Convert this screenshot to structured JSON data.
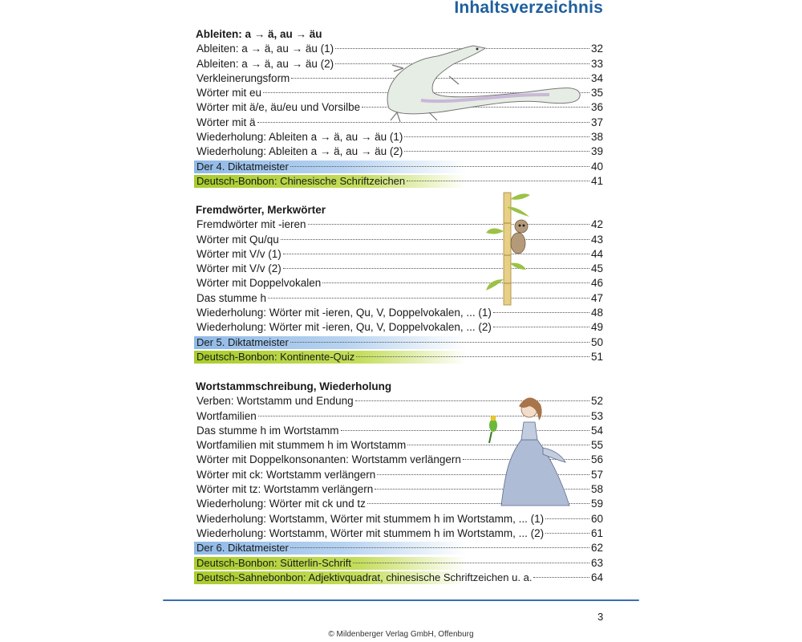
{
  "title": "Inhaltsverzeichnis",
  "sections": [
    {
      "heading": "Ableiten: a → ä, au → äu",
      "entries": [
        {
          "label": "Ableiten: a → ä, au → äu (1)",
          "page": "32",
          "style": "plain"
        },
        {
          "label": "Ableiten: a → ä, au → äu (2)",
          "page": "33",
          "style": "plain"
        },
        {
          "label": "Verkleinerungsform",
          "page": "34",
          "style": "plain"
        },
        {
          "label": "Wörter mit eu",
          "page": "35",
          "style": "plain"
        },
        {
          "label": "Wörter mit ä/e, äu/eu und Vorsilbe",
          "page": "36",
          "style": "plain"
        },
        {
          "label": "Wörter mit ä",
          "page": "37",
          "style": "plain"
        },
        {
          "label": "Wiederholung: Ableiten a → ä, au → äu (1)",
          "page": "38",
          "style": "plain"
        },
        {
          "label": "Wiederholung: Ableiten a → ä, au → äu (2)",
          "page": "39",
          "style": "plain"
        },
        {
          "label": "Der 4. Diktatmeister",
          "page": "40",
          "style": "blue"
        },
        {
          "label": "Deutsch-Bonbon: Chinesische Schriftzeichen",
          "page": "41",
          "style": "green"
        }
      ]
    },
    {
      "heading": "Fremdwörter, Merkwörter",
      "entries": [
        {
          "label": "Fremdwörter mit -ieren",
          "page": "42",
          "style": "plain"
        },
        {
          "label": "Wörter mit Qu/qu",
          "page": "43",
          "style": "plain"
        },
        {
          "label": "Wörter mit V/v (1)",
          "page": "44",
          "style": "plain"
        },
        {
          "label": "Wörter mit V/v (2)",
          "page": "45",
          "style": "plain"
        },
        {
          "label": "Wörter mit Doppelvokalen",
          "page": "46",
          "style": "plain"
        },
        {
          "label": "Das stumme h",
          "page": "47",
          "style": "plain"
        },
        {
          "label": "Wiederholung: Wörter mit -ieren, Qu, V, Doppelvokalen, ... (1)",
          "page": "48",
          "style": "plain"
        },
        {
          "label": "Wiederholung: Wörter mit -ieren, Qu, V, Doppelvokalen, ... (2)",
          "page": "49",
          "style": "plain"
        },
        {
          "label": "Der 5. Diktatmeister",
          "page": "50",
          "style": "blue"
        },
        {
          "label": "Deutsch-Bonbon: Kontinente-Quiz",
          "page": "51",
          "style": "green"
        }
      ]
    },
    {
      "heading": "Wortstammschreibung, Wiederholung",
      "entries": [
        {
          "label": "Verben: Wortstamm und Endung",
          "page": "52",
          "style": "plain"
        },
        {
          "label": "Wortfamilien",
          "page": "53",
          "style": "plain"
        },
        {
          "label": "Das stumme h im Wortstamm",
          "page": "54",
          "style": "plain"
        },
        {
          "label": "Wortfamilien mit stummem h im Wortstamm",
          "page": "55",
          "style": "plain"
        },
        {
          "label": "Wörter mit Doppelkonsonanten: Wortstamm verlängern",
          "page": "56",
          "style": "plain"
        },
        {
          "label": "Wörter mit ck: Wortstamm verlängern",
          "page": "57",
          "style": "plain"
        },
        {
          "label": "Wörter mit tz: Wortstamm verlängern",
          "page": "58",
          "style": "plain"
        },
        {
          "label": "Wiederholung: Wörter mit ck und tz",
          "page": "59",
          "style": "plain"
        },
        {
          "label": "Wiederholung: Wortstamm, Wörter mit stummem h im Wortstamm, ... (1)",
          "page": "60",
          "style": "plain"
        },
        {
          "label": "Wiederholung: Wortstamm, Wörter mit stummem h im Wortstamm, ... (2)",
          "page": "61",
          "style": "plain"
        },
        {
          "label": "Der 6. Diktatmeister",
          "page": "62",
          "style": "blue"
        },
        {
          "label": "Deutsch-Bonbon: Sütterlin-Schrift",
          "page": "63",
          "style": "green"
        },
        {
          "label": "Deutsch-Sahnebonbon: Adjektivquadrat, chinesische Schriftzeichen u. a.",
          "page": "64",
          "style": "green"
        }
      ]
    }
  ],
  "page_number": "3",
  "footer": "© Mildenberger Verlag GmbH, Offenburg",
  "illustrations": [
    "lizard",
    "monkey-on-bamboo",
    "woman-with-parrot"
  ],
  "colors": {
    "title": "#1f5f9e",
    "blue_highlight": "#8fb9e6",
    "green_highlight": "#a9cc2c",
    "rule": "#3a6fb2"
  }
}
